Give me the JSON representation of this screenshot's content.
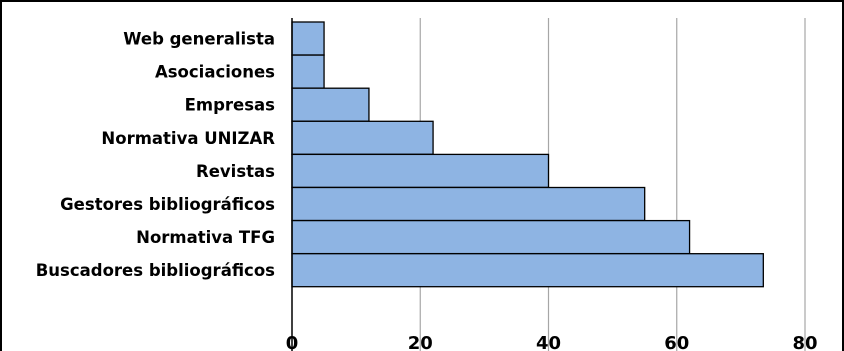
{
  "chart_data": {
    "type": "bar",
    "orientation": "horizontal",
    "title": "",
    "xlabel": "",
    "ylabel": "",
    "categories": [
      "Web generalista",
      "Asociaciones",
      "Empresas",
      "Normativa UNIZAR",
      "Revistas",
      "Gestores bibliográficos",
      "Normativa TFG",
      "Buscadores bibliográficos"
    ],
    "values": [
      5,
      5,
      12,
      22,
      40,
      55,
      62,
      73.5
    ],
    "xlim": [
      0,
      80
    ],
    "xticks": [
      0,
      20,
      40,
      60,
      80
    ],
    "xtick_labels": [
      "0",
      "20",
      "40",
      "60",
      "80"
    ],
    "grid": "vertical",
    "legend": "none",
    "bar_color": "#8eb4e3",
    "bar_edge_color": "#000000",
    "grid_color": "#a6a6a6"
  }
}
